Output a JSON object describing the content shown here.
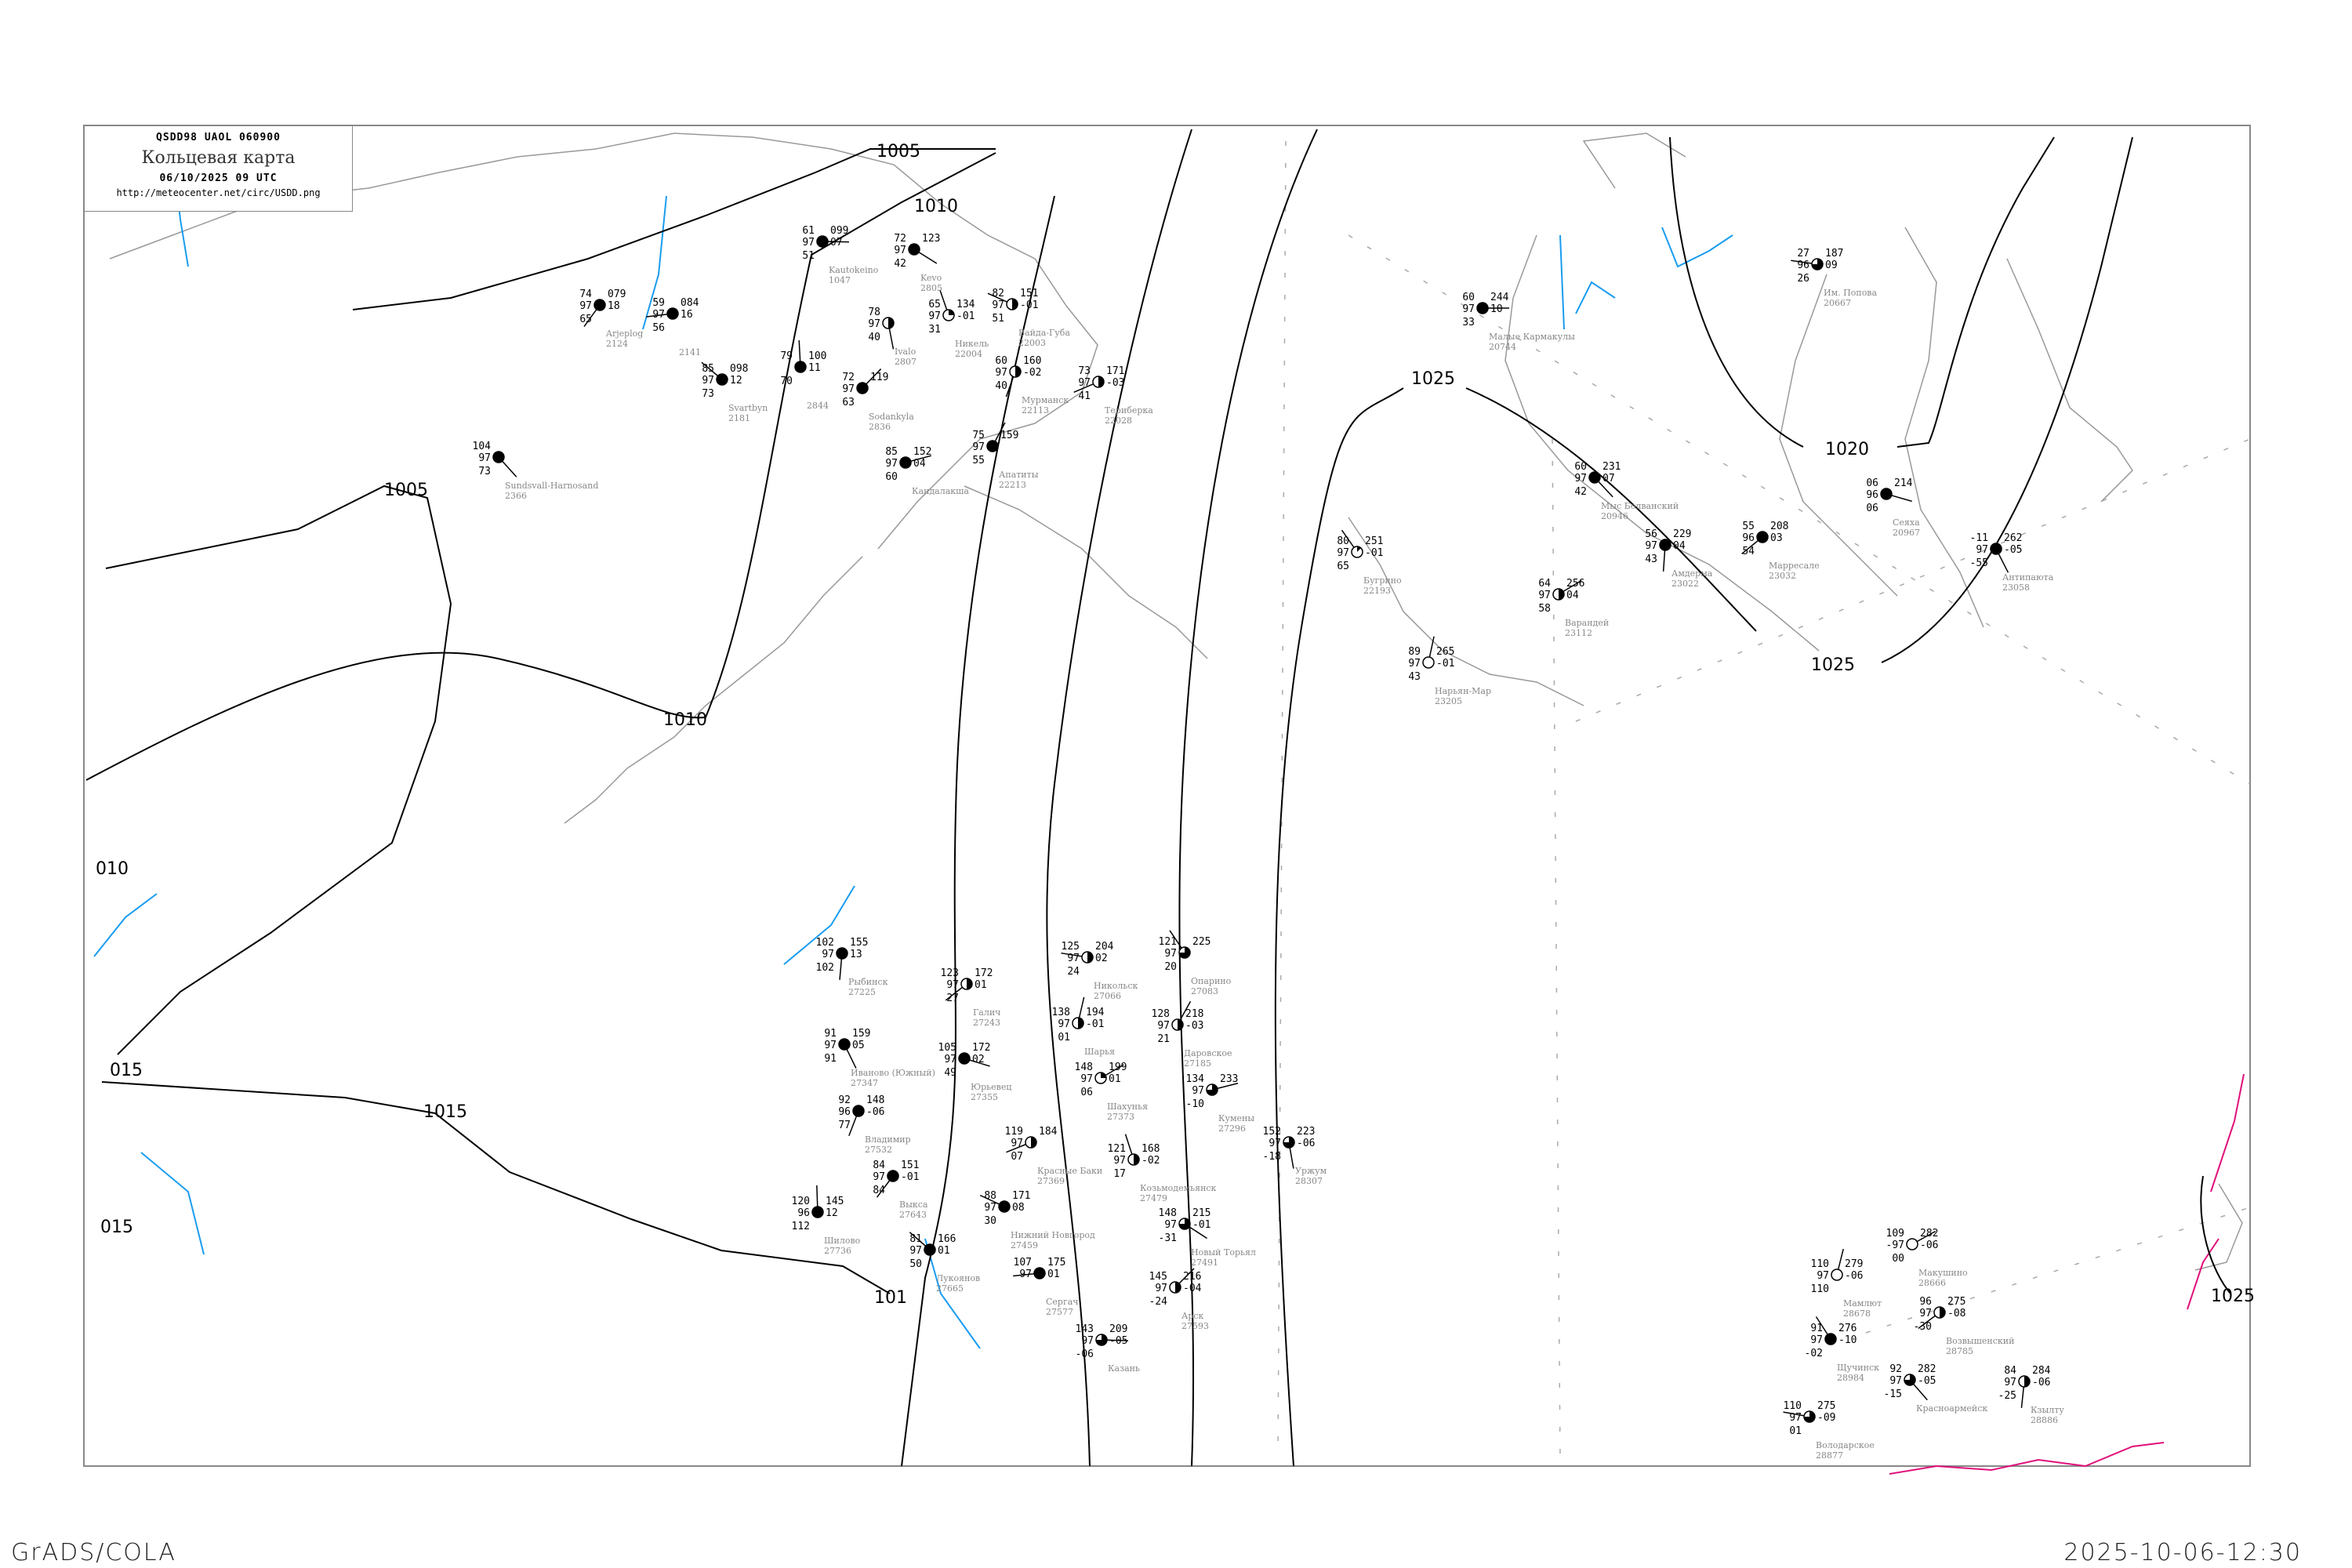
{
  "header": {
    "code": "QSDD98   UAOL   060900",
    "title": "Кольцевая карта",
    "date": "06/10/2025 09 UTC",
    "url": "http://meteocenter.net/circ/USDD.png"
  },
  "footer": {
    "left": "GrADS/COLA",
    "right": "2025-10-06-12:30"
  },
  "colors": {
    "isobar": "#000000",
    "coastline": "#999999",
    "river": "#1a9cf0",
    "border": "#e0107a",
    "station_name": "#888888",
    "precip_marker": "#22cc33"
  },
  "isobars": [
    {
      "label": "1005"
    },
    {
      "label": "1005"
    },
    {
      "label": "1010"
    },
    {
      "label": "1010"
    },
    {
      "label": "1015"
    },
    {
      "label": "015"
    },
    {
      "label": "101"
    },
    {
      "label": "1025"
    },
    {
      "label": "1025"
    },
    {
      "label": "1020"
    },
    {
      "label": "1025"
    },
    {
      "label": "015"
    },
    {
      "label": "010"
    }
  ],
  "stations": [
    {
      "name": "Малые Кармакулы",
      "id": "20744",
      "t": "60",
      "vv": "97",
      "td": "33",
      "ppp": "244",
      "tend": "10",
      "cover": 1
    },
    {
      "name": "Мыс Болванский",
      "id": "20946",
      "t": "60",
      "vv": "97",
      "td": "42",
      "ppp": "231",
      "tend": "07",
      "cover": 1
    },
    {
      "name": "Амдерма",
      "id": "23022",
      "t": "56",
      "vv": "97",
      "td": "43",
      "ppp": "229",
      "tend": "04",
      "cover": 1
    },
    {
      "name": "Марресале",
      "id": "23032",
      "t": "55",
      "vv": "96",
      "td": "54",
      "ppp": "208",
      "tend": "03",
      "cover": 1
    },
    {
      "name": "Им. Попова",
      "id": "20667",
      "t": "27",
      "vv": "96",
      "td": "26",
      "ppp": "187",
      "tend": "09",
      "cover": 0.75
    },
    {
      "name": "Бугрино",
      "id": "22193",
      "t": "80",
      "vv": "97",
      "td": "65",
      "ppp": "251",
      "tend": "-01",
      "cover": 0.125
    },
    {
      "name": "Нарьян-Мар",
      "id": "23205",
      "t": "89",
      "vv": "97",
      "td": "43",
      "ppp": "265",
      "tend": "-01",
      "cover": 0
    },
    {
      "name": "Варандей",
      "id": "23112",
      "t": "64",
      "vv": "97",
      "td": "58",
      "ppp": "256",
      "tend": "04",
      "cover": 0.5
    },
    {
      "name": "Сеяха",
      "id": "20967",
      "t": "06",
      "vv": "96",
      "td": "06",
      "ppp": "214",
      "tend": "",
      "cover": 1
    },
    {
      "name": "Антипаюта",
      "id": "23058",
      "t": "-11",
      "vv": "97",
      "td": "-55",
      "ppp": "262",
      "tend": "-05",
      "cover": 1
    },
    {
      "name": "Мурманск",
      "id": "22113",
      "t": "60",
      "vv": "97",
      "td": "40",
      "ppp": "160",
      "tend": "-02",
      "cover": 0.5
    },
    {
      "name": "Териберка",
      "id": "22028",
      "t": "73",
      "vv": "97",
      "td": "41",
      "ppp": "171",
      "tend": "-03",
      "cover": 0.5
    },
    {
      "name": "Вайда-Губа",
      "id": "22003",
      "t": "82",
      "vv": "97",
      "td": "51",
      "ppp": "151",
      "tend": "-01",
      "cover": 0.5
    },
    {
      "name": "Никель",
      "id": "22004",
      "t": "65",
      "vv": "97",
      "td": "31",
      "ppp": "134",
      "tend": "-01",
      "cover": 0.25
    },
    {
      "name": "Апатиты",
      "id": "22213",
      "t": "75",
      "vv": "97",
      "td": "55",
      "ppp": "159",
      "tend": "",
      "cover": 1
    },
    {
      "name": "Кандалакша",
      "id": "",
      "t": "85",
      "vv": "97",
      "td": "60",
      "ppp": "152",
      "tend": "04",
      "cover": 1
    },
    {
      "name": "Kevo",
      "id": "2805",
      "t": "72",
      "vv": "97",
      "td": "42",
      "ppp": "123",
      "tend": "",
      "cover": 1
    },
    {
      "name": "Ivalo",
      "id": "2807",
      "t": "78",
      "vv": "97",
      "td": "40",
      "ppp": "",
      "tend": "",
      "cover": 0.5
    },
    {
      "name": "Arjeplog",
      "id": "2124",
      "t": "74",
      "vv": "97",
      "td": "65",
      "ppp": "079",
      "tend": "18",
      "cover": 1
    },
    {
      "name": "",
      "id": "2141",
      "t": "59",
      "vv": "97",
      "td": "56",
      "ppp": "084",
      "tend": "16",
      "cover": 1
    },
    {
      "name": "Svartbyn",
      "id": "2181",
      "t": "85",
      "vv": "97",
      "td": "73",
      "ppp": "098",
      "tend": "12",
      "cover": 1
    },
    {
      "name": "",
      "id": "2844",
      "t": "79",
      "vv": "",
      "td": "70",
      "ppp": "100",
      "tend": "11",
      "cover": 1
    },
    {
      "name": "Sodankyla",
      "id": "2836",
      "t": "72",
      "vv": "97",
      "td": "63",
      "ppp": "119",
      "tend": "",
      "cover": 1
    },
    {
      "name": "Kautokeino",
      "id": "1047",
      "t": "61",
      "vv": "97",
      "td": "51",
      "ppp": "099",
      "tend": "07",
      "cover": 1
    },
    {
      "name": "Sundsvall-Harnosand",
      "id": "2366",
      "t": "104",
      "vv": "97",
      "td": "73",
      "ppp": "",
      "tend": "",
      "cover": 1
    },
    {
      "name": "Рыбинск",
      "id": "27225",
      "t": "102",
      "vv": "97",
      "td": "102",
      "ppp": "155",
      "tend": "13",
      "cover": 1
    },
    {
      "name": "Галич",
      "id": "27243",
      "t": "123",
      "vv": "97",
      "td": "27",
      "ppp": "172",
      "tend": "01",
      "cover": 0.5
    },
    {
      "name": "Никольск",
      "id": "27066",
      "t": "125",
      "vv": "97",
      "td": "24",
      "ppp": "204",
      "tend": "02",
      "cover": 0.5
    },
    {
      "name": "Опарино",
      "id": "27083",
      "t": "121",
      "vv": "97",
      "td": "20",
      "ppp": "225",
      "tend": "",
      "cover": 0.75
    },
    {
      "name": "Шарья",
      "id": "",
      "t": "138",
      "vv": "97",
      "td": "01",
      "ppp": "194",
      "tend": "-01",
      "cover": 0.5
    },
    {
      "name": "Шахунья",
      "id": "27373",
      "t": "148",
      "vv": "97",
      "td": "06",
      "ppp": "199",
      "tend": "01",
      "cover": 0.25
    },
    {
      "name": "Юрьевец",
      "id": "27355",
      "t": "105",
      "vv": "97",
      "td": "49",
      "ppp": "172",
      "tend": "02",
      "cover": 1
    },
    {
      "name": "Иваново (Южный)",
      "id": "27347",
      "t": "91",
      "vv": "97",
      "td": "91",
      "ppp": "159",
      "tend": "05",
      "cover": 1
    },
    {
      "name": "Владимир",
      "id": "27532",
      "t": "92",
      "vv": "96",
      "td": "77",
      "ppp": "148",
      "tend": "-06",
      "cover": 1
    },
    {
      "name": "Красные Баки",
      "id": "27369",
      "t": "119",
      "vv": "97",
      "td": "07",
      "ppp": "184",
      "tend": "",
      "cover": 0.5
    },
    {
      "name": "Нижний Новгород",
      "id": "27459",
      "t": "88",
      "vv": "97",
      "td": "30",
      "ppp": "171",
      "tend": "08",
      "cover": 1
    },
    {
      "name": "Козьмодемьянск",
      "id": "27479",
      "t": "121",
      "vv": "97",
      "td": "17",
      "ppp": "168",
      "tend": "-02",
      "cover": 0.5
    },
    {
      "name": "Даровское",
      "id": "27185",
      "t": "128",
      "vv": "97",
      "td": "21",
      "ppp": "218",
      "tend": "-03",
      "cover": 0.5
    },
    {
      "name": "Кумены",
      "id": "27296",
      "t": "134",
      "vv": "97",
      "td": "-10",
      "ppp": "233",
      "tend": "",
      "cover": 0.75
    },
    {
      "name": "Новый Торьял",
      "id": "27491",
      "t": "148",
      "vv": "97",
      "td": "-31",
      "ppp": "215",
      "tend": "-01",
      "cover": 0.75
    },
    {
      "name": "Уржум",
      "id": "28307",
      "t": "152",
      "vv": "97",
      "td": "-18",
      "ppp": "223",
      "tend": "-06",
      "cover": 0.75
    },
    {
      "name": "Выкса",
      "id": "27643",
      "t": "84",
      "vv": "97",
      "td": "84",
      "ppp": "151",
      "tend": "-01",
      "cover": 1
    },
    {
      "name": "Сергач",
      "id": "27577",
      "t": "107",
      "vv": "97",
      "td": "",
      "ppp": "175",
      "tend": "01",
      "cover": 1
    },
    {
      "name": "Лукоянов",
      "id": "27665",
      "t": "81",
      "vv": "97",
      "td": "50",
      "ppp": "166",
      "tend": "01",
      "cover": 1
    },
    {
      "name": "Шилово",
      "id": "27736",
      "t": "120",
      "vv": "96",
      "td": "112",
      "ppp": "145",
      "tend": "12",
      "cover": 1
    },
    {
      "name": "Арск",
      "id": "27593",
      "t": "145",
      "vv": "97",
      "td": "-24",
      "ppp": "216",
      "tend": "-04",
      "cover": 0.5
    },
    {
      "name": "Казань",
      "id": "",
      "t": "143",
      "vv": "97",
      "td": "-06",
      "ppp": "209",
      "tend": "-05",
      "cover": 0.75
    },
    {
      "name": "Красноармейск",
      "id": "",
      "t": "92",
      "vv": "97",
      "td": "-15",
      "ppp": "282",
      "tend": "-05",
      "cover": 0.75
    },
    {
      "name": "Кзылту",
      "id": "28886",
      "t": "84",
      "vv": "97",
      "td": "-25",
      "ppp": "284",
      "tend": "-06",
      "cover": 0.5
    },
    {
      "name": "Возвышенский",
      "id": "28785",
      "t": "96",
      "vv": "97",
      "td": "-30",
      "ppp": "275",
      "tend": "-08",
      "cover": 0.5
    },
    {
      "name": "Володарское",
      "id": "28877",
      "t": "110",
      "vv": "97",
      "td": "01",
      "ppp": "275",
      "tend": "-09",
      "cover": 0.75
    },
    {
      "name": "Щучинск",
      "id": "28984",
      "t": "91",
      "vv": "97",
      "td": "-02",
      "ppp": "276",
      "tend": "-10",
      "cover": 1
    },
    {
      "name": "Мамлют",
      "id": "28678",
      "t": "110",
      "vv": "97",
      "td": "110",
      "ppp": "279",
      "tend": "-06",
      "cover": 0
    },
    {
      "name": "Макушино",
      "id": "28666",
      "t": "109",
      "vv": "-97",
      "td": "00",
      "ppp": "282",
      "tend": "-06",
      "cover": 0
    }
  ]
}
